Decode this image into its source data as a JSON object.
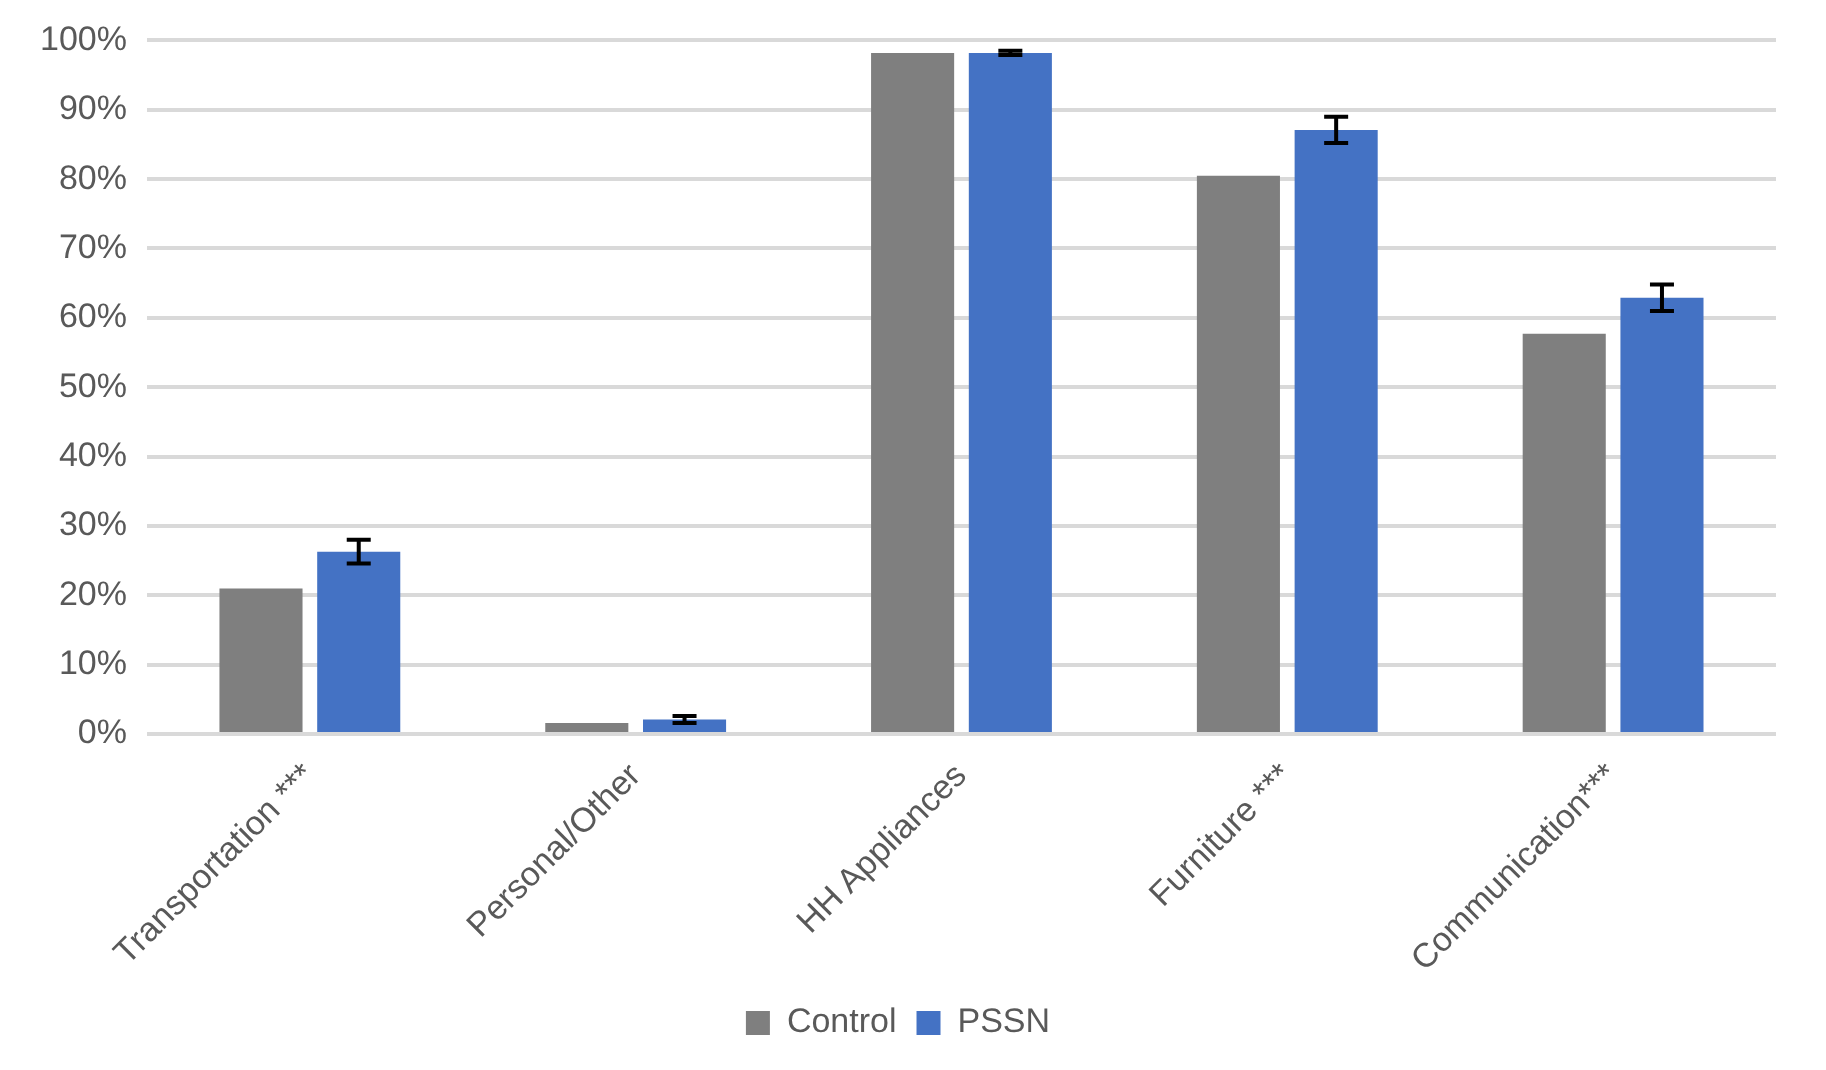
{
  "chart_data": {
    "type": "bar",
    "categories": [
      "Transportation ***",
      "Personal/Other",
      "HH Appliances",
      "Furniture ***",
      "Communication***"
    ],
    "series": [
      {
        "name": "Control",
        "color": "#7f7f7f",
        "values": [
          21.0,
          1.6,
          98.2,
          80.5,
          57.7
        ]
      },
      {
        "name": "PSSN",
        "color": "#4472c4",
        "values": [
          26.3,
          2.1,
          98.2,
          87.1,
          62.9
        ],
        "errors": [
          1.7,
          0.5,
          0.3,
          1.9,
          1.9
        ]
      }
    ],
    "ylim": [
      0,
      100
    ],
    "yticks": [
      {
        "value": 0,
        "label": "0%"
      },
      {
        "value": 10,
        "label": "10%"
      },
      {
        "value": 20,
        "label": "20%"
      },
      {
        "value": 30,
        "label": "30%"
      },
      {
        "value": 40,
        "label": "40%"
      },
      {
        "value": 50,
        "label": "50%"
      },
      {
        "value": 60,
        "label": "60%"
      },
      {
        "value": 70,
        "label": "70%"
      },
      {
        "value": 80,
        "label": "80%"
      },
      {
        "value": 90,
        "label": "90%"
      },
      {
        "value": 100,
        "label": "100%"
      }
    ],
    "grid": "y",
    "legend": "bottom"
  }
}
